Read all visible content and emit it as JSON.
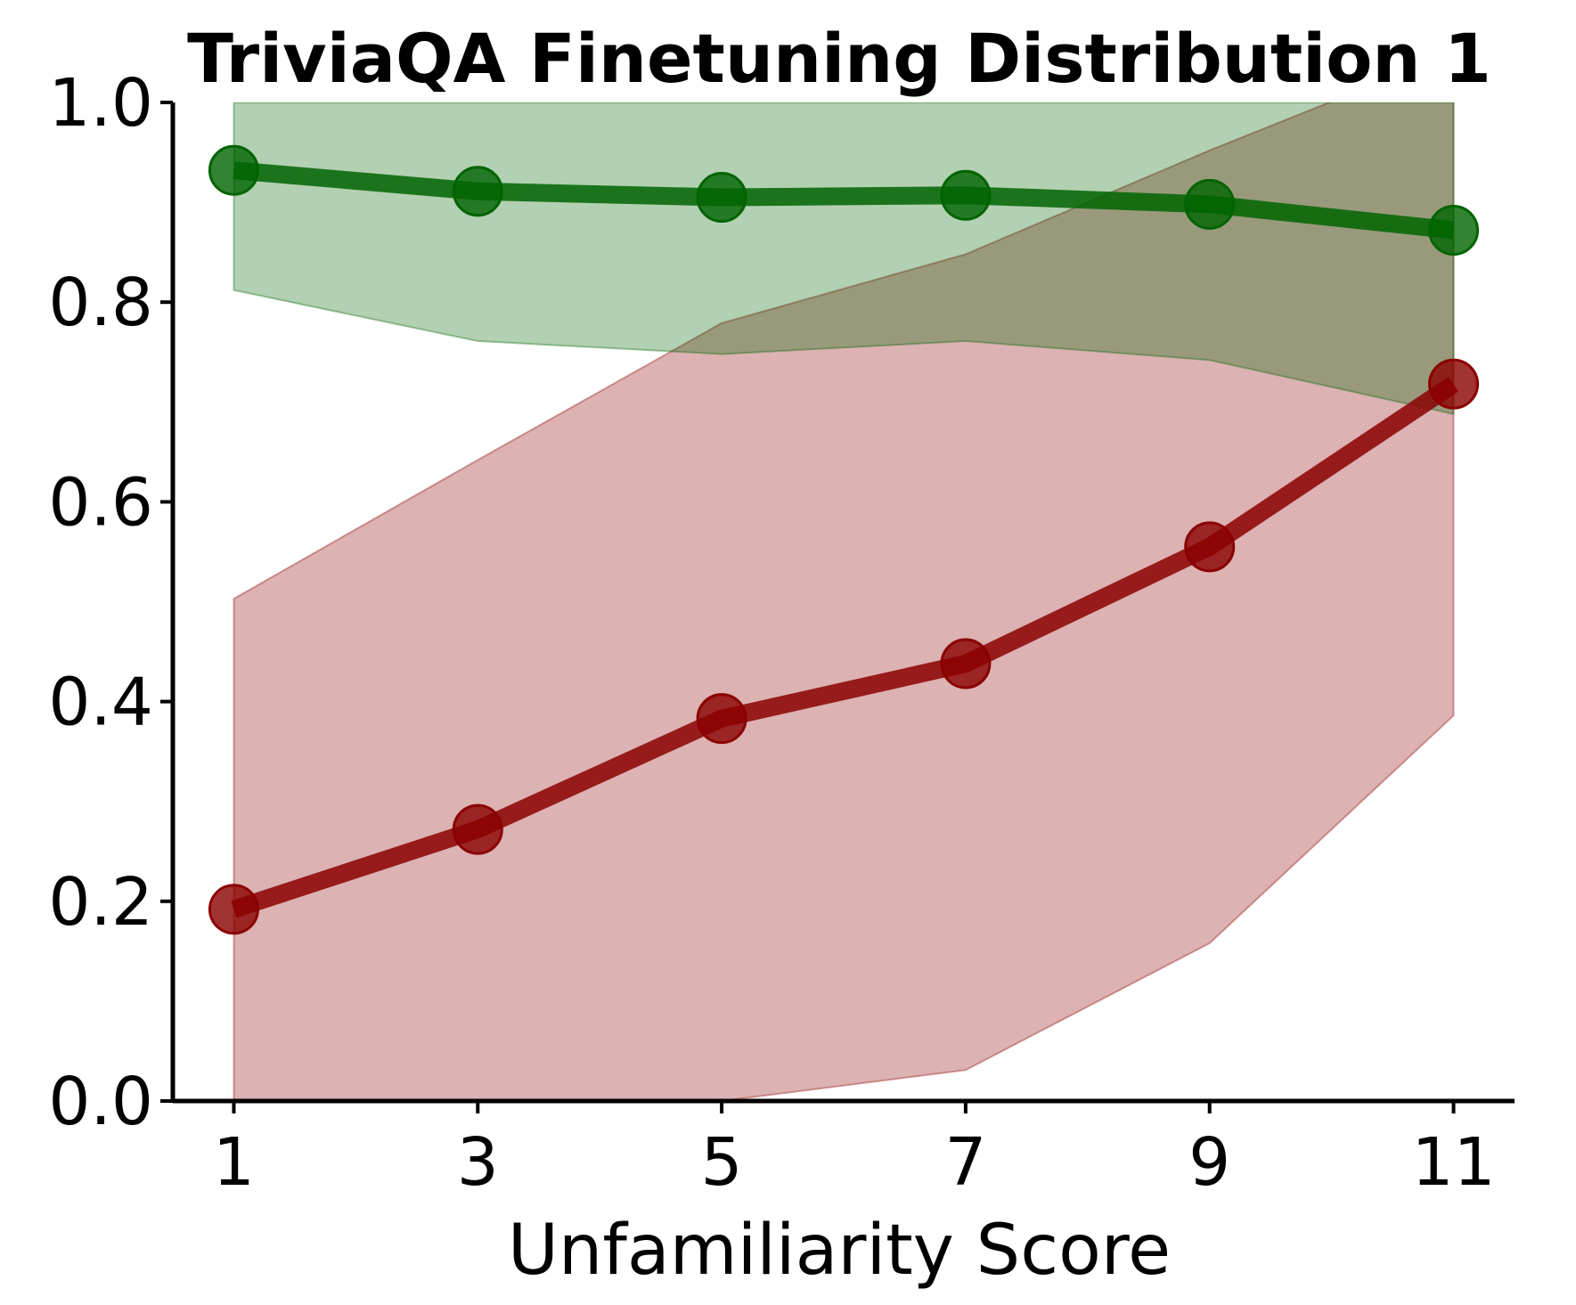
{
  "chart_data": {
    "type": "line",
    "title": "TriviaQA Finetuning Distribution 1",
    "xlabel": "Unfamiliarity Score",
    "ylabel": "",
    "xlim": [
      0.5,
      11.5
    ],
    "ylim": [
      0,
      1
    ],
    "x_ticks": [
      "1",
      "3",
      "5",
      "7",
      "9",
      "11"
    ],
    "y_ticks": [
      "0.0",
      "0.2",
      "0.4",
      "0.6",
      "0.8",
      "1.0"
    ],
    "x": [
      1,
      3,
      5,
      7,
      9,
      11
    ],
    "grid": false,
    "legend": "none",
    "series": [
      {
        "color": "#006400",
        "values": [
          0.932,
          0.911,
          0.905,
          0.907,
          0.898,
          0.872
        ],
        "band_lower": [
          0.812,
          0.761,
          0.748,
          0.761,
          0.742,
          0.688
        ],
        "band_upper": [
          1.0,
          1.0,
          1.0,
          1.0,
          1.0,
          1.0
        ]
      },
      {
        "color": "#8b0000",
        "values": [
          0.192,
          0.272,
          0.383,
          0.438,
          0.555,
          0.718
        ],
        "band_lower": [
          0.0,
          0.0,
          0.0,
          0.031,
          0.158,
          0.386
        ],
        "band_upper": [
          0.503,
          0.642,
          0.779,
          0.848,
          0.952,
          1.05
        ]
      }
    ]
  }
}
